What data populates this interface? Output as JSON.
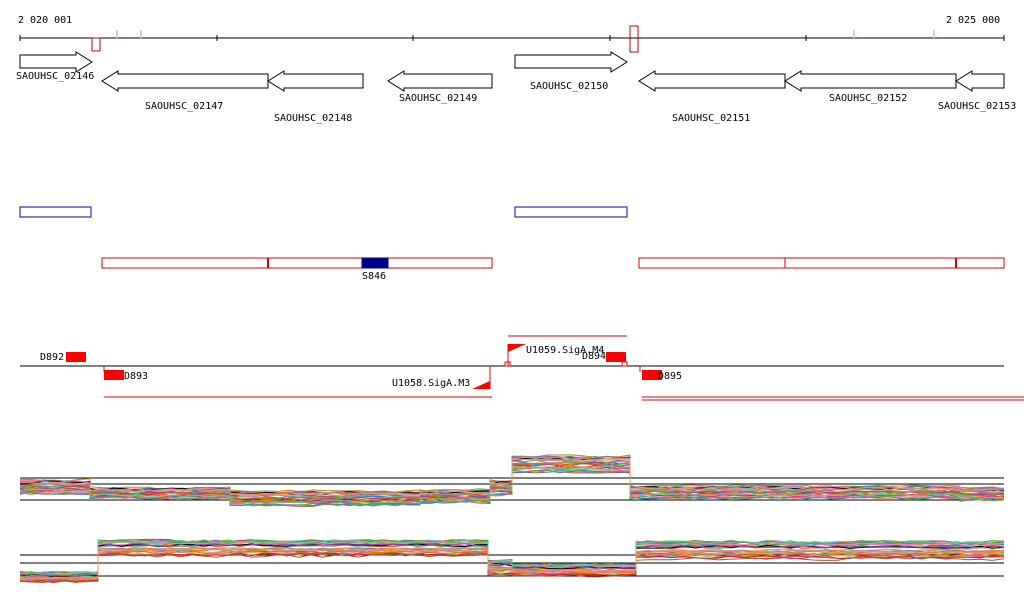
{
  "ruler": {
    "start_label": "2 020 001",
    "end_label": "2 025 000"
  },
  "genes": [
    {
      "id": "SAOUHSC_02146",
      "strand": "+"
    },
    {
      "id": "SAOUHSC_02147",
      "strand": "-"
    },
    {
      "id": "SAOUHSC_02148",
      "strand": "-"
    },
    {
      "id": "SAOUHSC_02149",
      "strand": "-"
    },
    {
      "id": "SAOUHSC_02150",
      "strand": "+"
    },
    {
      "id": "SAOUHSC_02151",
      "strand": "-"
    },
    {
      "id": "SAOUHSC_02152",
      "strand": "-"
    },
    {
      "id": "SAOUHSC_02153",
      "strand": "-"
    }
  ],
  "feature_label": "S846",
  "transcription_units": [
    "D892",
    "D893",
    "D894",
    "D895"
  ],
  "promoters": [
    "U1058.SigA.M3",
    "U1059.SigA.M4"
  ],
  "colors": {
    "gene_outline": "#000000",
    "blue_box": "#0000aa",
    "red_track": "#dd0000",
    "feature_fill": "#00008b",
    "axis": "#000000"
  }
}
